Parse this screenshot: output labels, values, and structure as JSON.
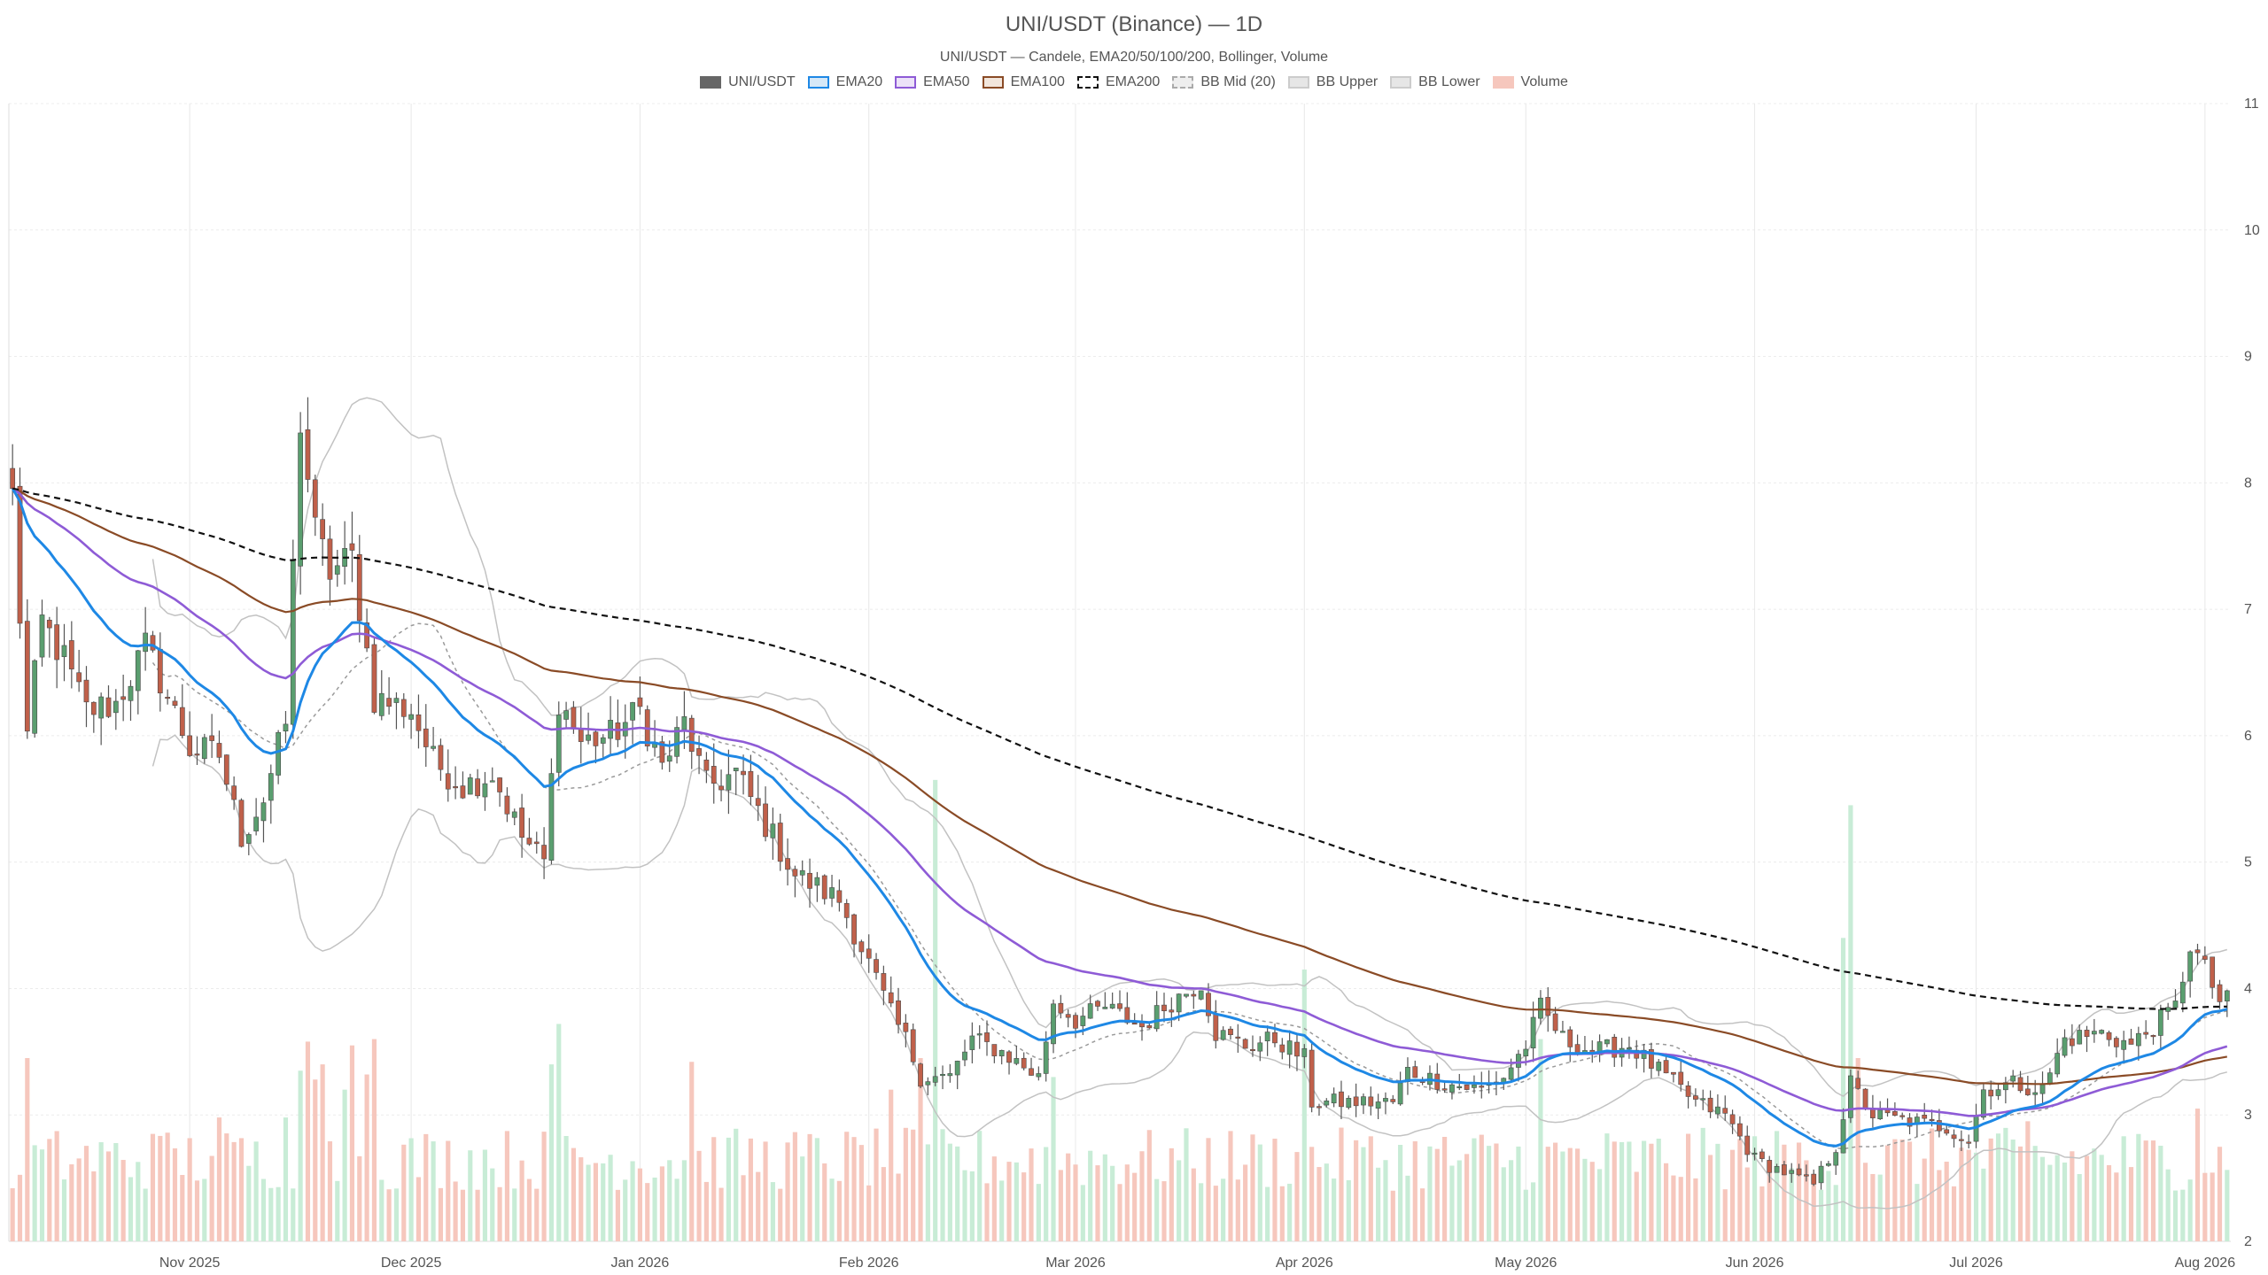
{
  "chart_data": {
    "type": "candlestick",
    "title": "UNI/USDT (Binance) — 1D",
    "subtitle": "UNI/USDT — Candele, EMA20/50/100/200, Bollinger, Volume",
    "legend": [
      {
        "name": "UNI/USDT",
        "fill": "#666666",
        "stroke": "#666666",
        "dash": false
      },
      {
        "name": "EMA20",
        "fill": "#d6e8f7",
        "stroke": "#1e88e5",
        "dash": false
      },
      {
        "name": "EMA50",
        "fill": "#ece2f8",
        "stroke": "#8e5bd6",
        "dash": false
      },
      {
        "name": "EMA100",
        "fill": "#f2e6dc",
        "stroke": "#8a4b26",
        "dash": false
      },
      {
        "name": "EMA200",
        "fill": "#ffffff",
        "stroke": "#111111",
        "dash": true
      },
      {
        "name": "BB Mid (20)",
        "fill": "#eeeeee",
        "stroke": "#aaaaaa",
        "dash": true
      },
      {
        "name": "BB Upper",
        "fill": "#e6e6e6",
        "stroke": "#cccccc",
        "dash": false
      },
      {
        "name": "BB Lower",
        "fill": "#e6e6e6",
        "stroke": "#cccccc",
        "dash": false
      },
      {
        "name": "Volume",
        "fill": "#f6c7bd",
        "stroke": "#f6c7bd",
        "dash": false
      }
    ],
    "x_tick_labels": [
      "Nov 2025",
      "Dec 2025",
      "Jan 2026",
      "Feb 2026",
      "Mar 2026",
      "Apr 2026",
      "May 2026",
      "Jun 2026",
      "Jul 2026",
      "Aug 2026"
    ],
    "x_tick_dates": [
      "2025-11-01",
      "2025-12-01",
      "2026-01-01",
      "2026-02-01",
      "2026-03-01",
      "2026-04-01",
      "2026-05-01",
      "2026-06-01",
      "2026-07-01",
      "2026-08-01"
    ],
    "x_range": [
      "2025-10-08",
      "2026-08-04"
    ],
    "y_range": [
      2,
      11
    ],
    "y_ticks": [
      2,
      3,
      4,
      5,
      6,
      7,
      8,
      9,
      10,
      11
    ],
    "y_axis_side": "right",
    "grid": true,
    "legend_position": "top-center",
    "colors": {
      "up": "#5a9e6f",
      "down": "#c0604a",
      "vol_up": "#c8ecd6",
      "vol_down": "#f6c7bd"
    },
    "price_anchors": [
      [
        "2025-10-08",
        7.9
      ],
      [
        "2025-10-10",
        6.0
      ],
      [
        "2025-10-12",
        6.9
      ],
      [
        "2025-10-15",
        6.6
      ],
      [
        "2025-10-18",
        6.2
      ],
      [
        "2025-10-22",
        6.25
      ],
      [
        "2025-10-26",
        6.7
      ],
      [
        "2025-10-28",
        6.45
      ],
      [
        "2025-11-01",
        5.9
      ],
      [
        "2025-11-05",
        5.85
      ],
      [
        "2025-11-08",
        5.2
      ],
      [
        "2025-11-11",
        5.5
      ],
      [
        "2025-11-14",
        6.1
      ],
      [
        "2025-11-16",
        8.5
      ],
      [
        "2025-11-18",
        7.6
      ],
      [
        "2025-11-20",
        7.3
      ],
      [
        "2025-11-23",
        7.4
      ],
      [
        "2025-11-26",
        6.3
      ],
      [
        "2025-12-01",
        6.2
      ],
      [
        "2025-12-04",
        5.8
      ],
      [
        "2025-12-08",
        5.6
      ],
      [
        "2025-12-12",
        5.7
      ],
      [
        "2025-12-16",
        5.2
      ],
      [
        "2025-12-19",
        5.0
      ],
      [
        "2025-12-21",
        6.3
      ],
      [
        "2025-12-24",
        5.95
      ],
      [
        "2025-12-28",
        6.0
      ],
      [
        "2026-01-01",
        6.2
      ],
      [
        "2026-01-04",
        5.75
      ],
      [
        "2026-01-07",
        6.1
      ],
      [
        "2026-01-10",
        5.6
      ],
      [
        "2026-01-14",
        5.7
      ],
      [
        "2026-01-18",
        5.3
      ],
      [
        "2026-01-22",
        4.9
      ],
      [
        "2026-01-28",
        4.7
      ],
      [
        "2026-02-01",
        4.2
      ],
      [
        "2026-02-04",
        3.8
      ],
      [
        "2026-02-06",
        3.6
      ],
      [
        "2026-02-08",
        3.3
      ],
      [
        "2026-02-12",
        3.3
      ],
      [
        "2026-02-15",
        3.6
      ],
      [
        "2026-02-19",
        3.5
      ],
      [
        "2026-02-24",
        3.3
      ],
      [
        "2026-02-26",
        3.9
      ],
      [
        "2026-03-01",
        3.75
      ],
      [
        "2026-03-05",
        3.85
      ],
      [
        "2026-03-10",
        3.7
      ],
      [
        "2026-03-14",
        3.9
      ],
      [
        "2026-03-18",
        4.05
      ],
      [
        "2026-03-20",
        3.65
      ],
      [
        "2026-03-24",
        3.55
      ],
      [
        "2026-03-28",
        3.6
      ],
      [
        "2026-04-01",
        3.45
      ],
      [
        "2026-04-02",
        3.1
      ],
      [
        "2026-04-08",
        3.1
      ],
      [
        "2026-04-13",
        3.1
      ],
      [
        "2026-04-15",
        3.35
      ],
      [
        "2026-04-20",
        3.25
      ],
      [
        "2026-04-25",
        3.2
      ],
      [
        "2026-04-28",
        3.3
      ],
      [
        "2026-05-01",
        3.55
      ],
      [
        "2026-05-03",
        3.85
      ],
      [
        "2026-05-06",
        3.6
      ],
      [
        "2026-05-10",
        3.5
      ],
      [
        "2026-05-15",
        3.55
      ],
      [
        "2026-05-20",
        3.3
      ],
      [
        "2026-05-24",
        3.1
      ],
      [
        "2026-05-28",
        3.0
      ],
      [
        "2026-06-01",
        2.65
      ],
      [
        "2026-06-05",
        2.55
      ],
      [
        "2026-06-09",
        2.45
      ],
      [
        "2026-06-12",
        2.75
      ],
      [
        "2026-06-14",
        3.25
      ],
      [
        "2026-06-17",
        3.0
      ],
      [
        "2026-06-22",
        2.95
      ],
      [
        "2026-06-27",
        2.9
      ],
      [
        "2026-06-30",
        2.8
      ],
      [
        "2026-07-02",
        3.2
      ],
      [
        "2026-07-06",
        3.25
      ],
      [
        "2026-07-10",
        3.2
      ],
      [
        "2026-07-13",
        3.6
      ],
      [
        "2026-07-18",
        3.65
      ],
      [
        "2026-07-22",
        3.55
      ],
      [
        "2026-07-26",
        3.75
      ],
      [
        "2026-07-28",
        3.85
      ],
      [
        "2026-07-30",
        4.35
      ],
      [
        "2026-08-01",
        4.15
      ],
      [
        "2026-08-03",
        3.9
      ]
    ],
    "volume_spikes": [
      [
        "2025-10-08",
        0.42
      ],
      [
        "2025-10-10",
        1.45
      ],
      [
        "2025-10-27",
        0.85
      ],
      [
        "2025-11-05",
        0.98
      ],
      [
        "2025-11-14",
        0.98
      ],
      [
        "2025-11-16",
        1.35
      ],
      [
        "2025-11-17",
        1.58
      ],
      [
        "2025-11-18",
        1.28
      ],
      [
        "2025-11-19",
        1.4
      ],
      [
        "2025-11-22",
        1.2
      ],
      [
        "2025-11-23",
        1.55
      ],
      [
        "2025-11-25",
        1.32
      ],
      [
        "2025-11-26",
        1.6
      ],
      [
        "2025-12-20",
        1.4
      ],
      [
        "2025-12-21",
        1.72
      ],
      [
        "2026-01-08",
        1.42
      ],
      [
        "2026-02-04",
        1.2
      ],
      [
        "2026-02-08",
        1.45
      ],
      [
        "2026-02-10",
        3.65
      ],
      [
        "2026-02-26",
        1.3
      ],
      [
        "2026-04-01",
        2.15
      ],
      [
        "2026-05-03",
        1.6
      ],
      [
        "2026-06-13",
        2.4
      ],
      [
        "2026-06-14",
        3.45
      ],
      [
        "2026-06-15",
        1.45
      ],
      [
        "2026-07-08",
        0.95
      ],
      [
        "2026-07-31",
        1.05
      ]
    ]
  }
}
